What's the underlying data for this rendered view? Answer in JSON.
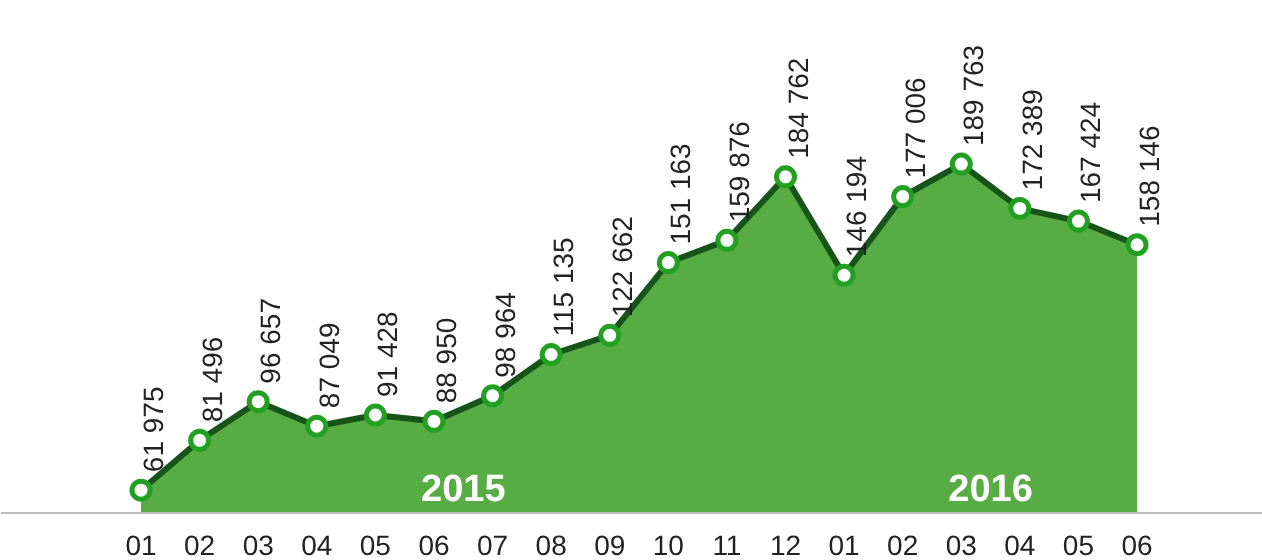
{
  "chart_data": {
    "type": "area",
    "categories": [
      "01",
      "02",
      "03",
      "04",
      "05",
      "06",
      "07",
      "08",
      "09",
      "10",
      "11",
      "12",
      "01",
      "02",
      "03",
      "04",
      "05",
      "06"
    ],
    "series": [
      {
        "color": "#4fa83a",
        "values": [
          61975,
          81496,
          96657,
          87049,
          91428,
          88950,
          98964,
          115135,
          122662,
          151163,
          159876,
          184762,
          146194,
          177006,
          189763,
          172389,
          167424,
          158146
        ]
      }
    ],
    "data_labels": true,
    "marker": "circle",
    "grid": false,
    "annotations": [
      "2015",
      "2016"
    ]
  }
}
